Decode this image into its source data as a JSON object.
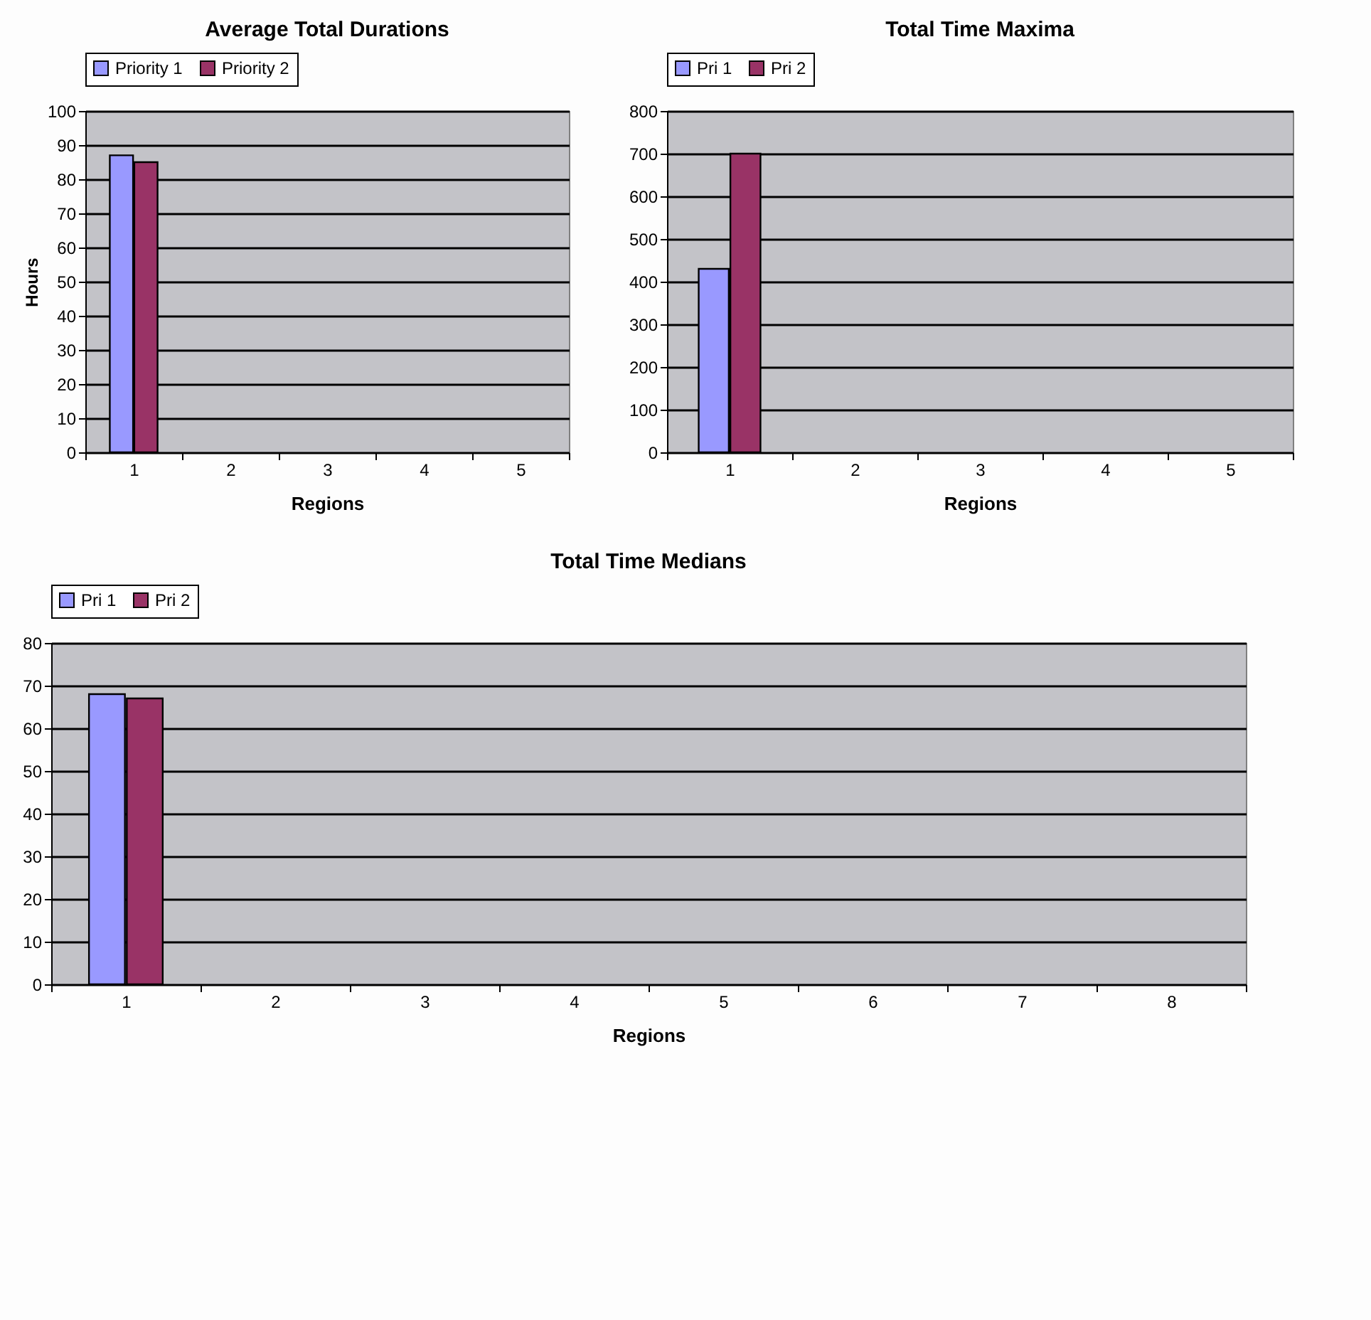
{
  "chart_data": [
    {
      "type": "bar",
      "title": "Average Total Durations",
      "xlabel": "Regions",
      "ylabel": "Hours",
      "categories": [
        "1",
        "2",
        "3",
        "4",
        "5"
      ],
      "series": [
        {
          "name": "Priority 1",
          "color": "#9999ff",
          "values": [
            87,
            null,
            null,
            null,
            null
          ]
        },
        {
          "name": "Priority 2",
          "color": "#993366",
          "values": [
            85,
            null,
            null,
            null,
            null
          ]
        }
      ],
      "ylim": [
        0,
        100
      ],
      "yticks": [
        0,
        10,
        20,
        30,
        40,
        50,
        60,
        70,
        80,
        90,
        100
      ],
      "grid": "y",
      "legend": "top"
    },
    {
      "type": "bar",
      "title": "Total Time Maxima",
      "xlabel": "Regions",
      "categories": [
        "1",
        "2",
        "3",
        "4",
        "5"
      ],
      "series": [
        {
          "name": "Pri 1",
          "color": "#9999ff",
          "values": [
            430,
            null,
            null,
            null,
            null
          ]
        },
        {
          "name": "Pri 2",
          "color": "#993366",
          "values": [
            700,
            null,
            null,
            null,
            null
          ]
        }
      ],
      "ylim": [
        0,
        800
      ],
      "yticks": [
        0,
        100,
        200,
        300,
        400,
        500,
        600,
        700,
        800
      ],
      "grid": "y",
      "legend": "top"
    },
    {
      "type": "bar",
      "title": "Total Time Medians",
      "xlabel": "Regions",
      "categories": [
        "1",
        "2",
        "3",
        "4",
        "5",
        "6",
        "7",
        "8"
      ],
      "series": [
        {
          "name": "Pri 1",
          "color": "#9999ff",
          "values": [
            68,
            null,
            null,
            null,
            null,
            null,
            null,
            null
          ]
        },
        {
          "name": "Pri 2",
          "color": "#993366",
          "values": [
            67,
            null,
            null,
            null,
            null,
            null,
            null,
            null
          ]
        }
      ],
      "ylim": [
        0,
        80
      ],
      "yticks": [
        0,
        10,
        20,
        30,
        40,
        50,
        60,
        70,
        80
      ],
      "grid": "y",
      "legend": "top"
    }
  ]
}
